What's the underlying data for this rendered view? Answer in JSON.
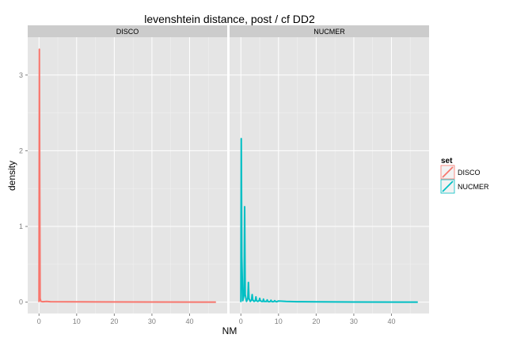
{
  "chart_data": {
    "type": "line",
    "title": "levenshtein distance, post / cf DD2",
    "xlabel": "NM",
    "ylabel": "density",
    "xlim": [
      -3,
      50
    ],
    "ylim": [
      -0.15,
      3.5
    ],
    "x_ticks": [
      0,
      10,
      20,
      30,
      40
    ],
    "y_ticks": [
      0,
      1,
      2,
      3
    ],
    "grid": true,
    "legend": {
      "title": "set",
      "placement": "right",
      "entries": [
        "DISCO",
        "NUCMER"
      ]
    },
    "panels": [
      {
        "name": "DISCO",
        "color": "#F8766D",
        "x": [
          0,
          0.1,
          0.2,
          0.3,
          0.5,
          1,
          2,
          3,
          47
        ],
        "y": [
          0,
          3.34,
          1.5,
          0.05,
          0.01,
          0.005,
          0.01,
          0.005,
          0.0
        ]
      },
      {
        "name": "NUCMER",
        "color": "#00BFC4",
        "x": [
          0,
          0.1,
          0.25,
          0.5,
          0.85,
          1,
          1.15,
          1.5,
          1.85,
          2,
          2.15,
          2.5,
          2.85,
          3,
          3.15,
          3.5,
          3.85,
          4,
          4.15,
          4.5,
          4.85,
          5,
          5.15,
          5.5,
          5.85,
          6,
          6.15,
          6.5,
          6.85,
          7,
          7.15,
          7.5,
          7.85,
          8,
          8.15,
          8.5,
          8.85,
          9,
          9.15,
          9.5,
          10,
          12,
          15,
          20,
          30,
          47
        ],
        "y": [
          0,
          2.16,
          0.6,
          0.02,
          0.1,
          1.26,
          0.1,
          0.01,
          0.05,
          0.26,
          0.05,
          0.01,
          0.03,
          0.1,
          0.03,
          0.01,
          0.02,
          0.07,
          0.02,
          0.01,
          0.02,
          0.05,
          0.02,
          0.01,
          0.01,
          0.04,
          0.01,
          0.01,
          0.01,
          0.03,
          0.01,
          0.005,
          0.01,
          0.025,
          0.01,
          0.005,
          0.01,
          0.02,
          0.01,
          0.005,
          0.015,
          0.01,
          0.006,
          0.004,
          0.002,
          0.0
        ]
      }
    ]
  }
}
